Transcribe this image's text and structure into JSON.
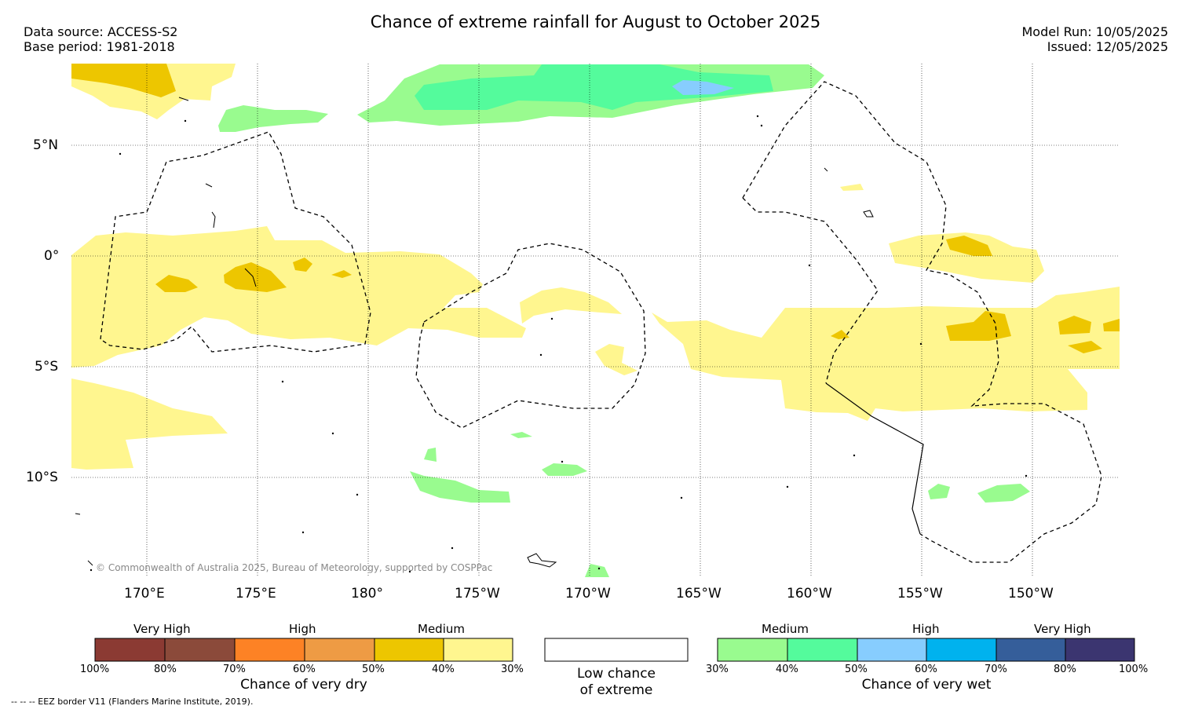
{
  "header": {
    "title": "Chance of extreme rainfall for August to October 2025",
    "data_source": "Data source: ACCESS-S2",
    "base_period": "Base period: 1981-2018",
    "model_run": "Model Run: 10/05/2025",
    "issued": "Issued: 12/05/2025"
  },
  "map": {
    "lat_labels": [
      "5°N",
      "0°",
      "5°S",
      "10°S"
    ],
    "lon_labels": [
      "170°E",
      "175°E",
      "180°",
      "175°W",
      "170°W",
      "165°W",
      "160°W",
      "155°W",
      "150°W"
    ],
    "copyright": "© Commonwealth of Australia 2025, Bureau of Meteorology, supported by COSPPac",
    "colors": {
      "dry_medium_light": "#fff68f",
      "dry_medium_dark": "#edc600",
      "wet_medium_light": "#99fb8f",
      "wet_medium_dark": "#54fb9c",
      "wet_high_light": "#87cdfe"
    }
  },
  "legend": {
    "dry": {
      "categories": [
        "Very High",
        "High",
        "Medium"
      ],
      "colors": [
        "#8b3a33",
        "#8b4a3a",
        "#fd8225",
        "#ee9b44",
        "#edc600",
        "#fff68f"
      ],
      "ticks": [
        "100%",
        "80%",
        "70%",
        "60%",
        "50%",
        "40%",
        "30%"
      ],
      "title": "Chance of very dry"
    },
    "low": {
      "line1": "Low chance",
      "line2": "of extreme"
    },
    "wet": {
      "categories": [
        "Medium",
        "High",
        "Very High"
      ],
      "colors": [
        "#99fb8f",
        "#54fb9c",
        "#87cdfe",
        "#00b2ee",
        "#355e9a",
        "#3b3570"
      ],
      "ticks": [
        "30%",
        "40%",
        "50%",
        "60%",
        "70%",
        "80%",
        "100%"
      ],
      "title": "Chance of very wet"
    },
    "eez_note": "--  --  -- EEZ border V11 (Flanders Marine Institute, 2019)."
  }
}
